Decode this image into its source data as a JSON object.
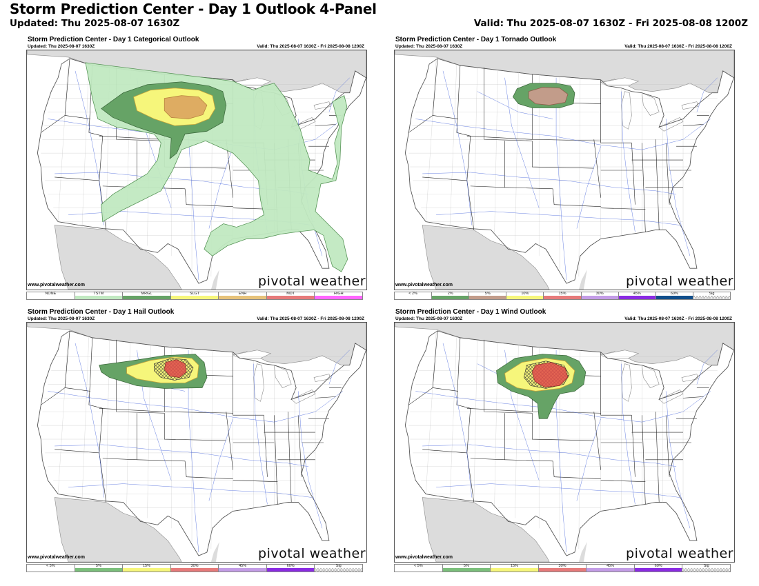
{
  "header": {
    "title": "Storm Prediction Center - Day 1 Outlook 4-Panel",
    "updated": "Updated: Thu 2025-08-07 1630Z",
    "valid": "Valid: Thu 2025-08-07 1630Z - Fri 2025-08-08 1200Z"
  },
  "panels": [
    {
      "title": "Storm Prediction Center - Day 1 Categorical Outlook",
      "updated": "Updated: Thu 2025-08-07 1630Z",
      "valid": "Valid: Thu 2025-08-07 1630Z - Fri 2025-08-08 1200Z",
      "credit": "www.pivotalweather.com",
      "logo": "pivotal weather",
      "legend": [
        {
          "label": "NONE",
          "color": "#ffffff"
        },
        {
          "label": "TSTM",
          "color": "#c1e9c1"
        },
        {
          "label": "MRGL",
          "color": "#66a366"
        },
        {
          "label": "SLGT",
          "color": "#f6f67b"
        },
        {
          "label": "ENH",
          "color": "#e6c27a"
        },
        {
          "label": "MDT",
          "color": "#e67a7a"
        },
        {
          "label": "HIGH",
          "color": "#ff66ff"
        }
      ]
    },
    {
      "title": "Storm Prediction Center - Day 1 Tornado Outlook",
      "updated": "Updated: Thu 2025-08-07 1630Z",
      "valid": "Valid: Thu 2025-08-07 1630Z - Fri 2025-08-08 1200Z",
      "credit": "www.pivotalweather.com",
      "logo": "pivotal weather",
      "legend": [
        {
          "label": "< 2%",
          "color": "#ffffff"
        },
        {
          "label": "2%",
          "color": "#66a366"
        },
        {
          "label": "5%",
          "color": "#c29c8a"
        },
        {
          "label": "10%",
          "color": "#f6f67b"
        },
        {
          "label": "15%",
          "color": "#e67a7a"
        },
        {
          "label": "30%",
          "color": "#c39ce6"
        },
        {
          "label": "45%",
          "color": "#8a2be2"
        },
        {
          "label": "60%",
          "color": "#104e8b"
        },
        {
          "label": "Sig",
          "color": "hatch"
        }
      ]
    },
    {
      "title": "Storm Prediction Center - Day 1 Hail Outlook",
      "updated": "Updated: Thu 2025-08-07 1630Z",
      "valid": "Valid: Thu 2025-08-07 1630Z - Fri 2025-08-08 1200Z",
      "credit": "www.pivotalweather.com",
      "logo": "pivotal weather",
      "legend": [
        {
          "label": "< 5%",
          "color": "#ffffff"
        },
        {
          "label": "5%",
          "color": "#7bbf7b"
        },
        {
          "label": "15%",
          "color": "#f6f67b"
        },
        {
          "label": "30%",
          "color": "#e67a7a"
        },
        {
          "label": "45%",
          "color": "#c39ce6"
        },
        {
          "label": "60%",
          "color": "#8a2be2"
        },
        {
          "label": "Sig",
          "color": "hatch"
        }
      ]
    },
    {
      "title": "Storm Prediction Center - Day 1 Wind Outlook",
      "updated": "Updated: Thu 2025-08-07 1630Z",
      "valid": "Valid: Thu 2025-08-07 1630Z - Fri 2025-08-08 1200Z",
      "credit": "www.pivotalweather.com",
      "logo": "pivotal weather",
      "legend": [
        {
          "label": "< 5%",
          "color": "#ffffff"
        },
        {
          "label": "5%",
          "color": "#7bbf7b"
        },
        {
          "label": "15%",
          "color": "#f6f67b"
        },
        {
          "label": "30%",
          "color": "#e67a7a"
        },
        {
          "label": "45%",
          "color": "#c39ce6"
        },
        {
          "label": "60%",
          "color": "#8a2be2"
        },
        {
          "label": "Sig",
          "color": "hatch"
        }
      ]
    }
  ]
}
